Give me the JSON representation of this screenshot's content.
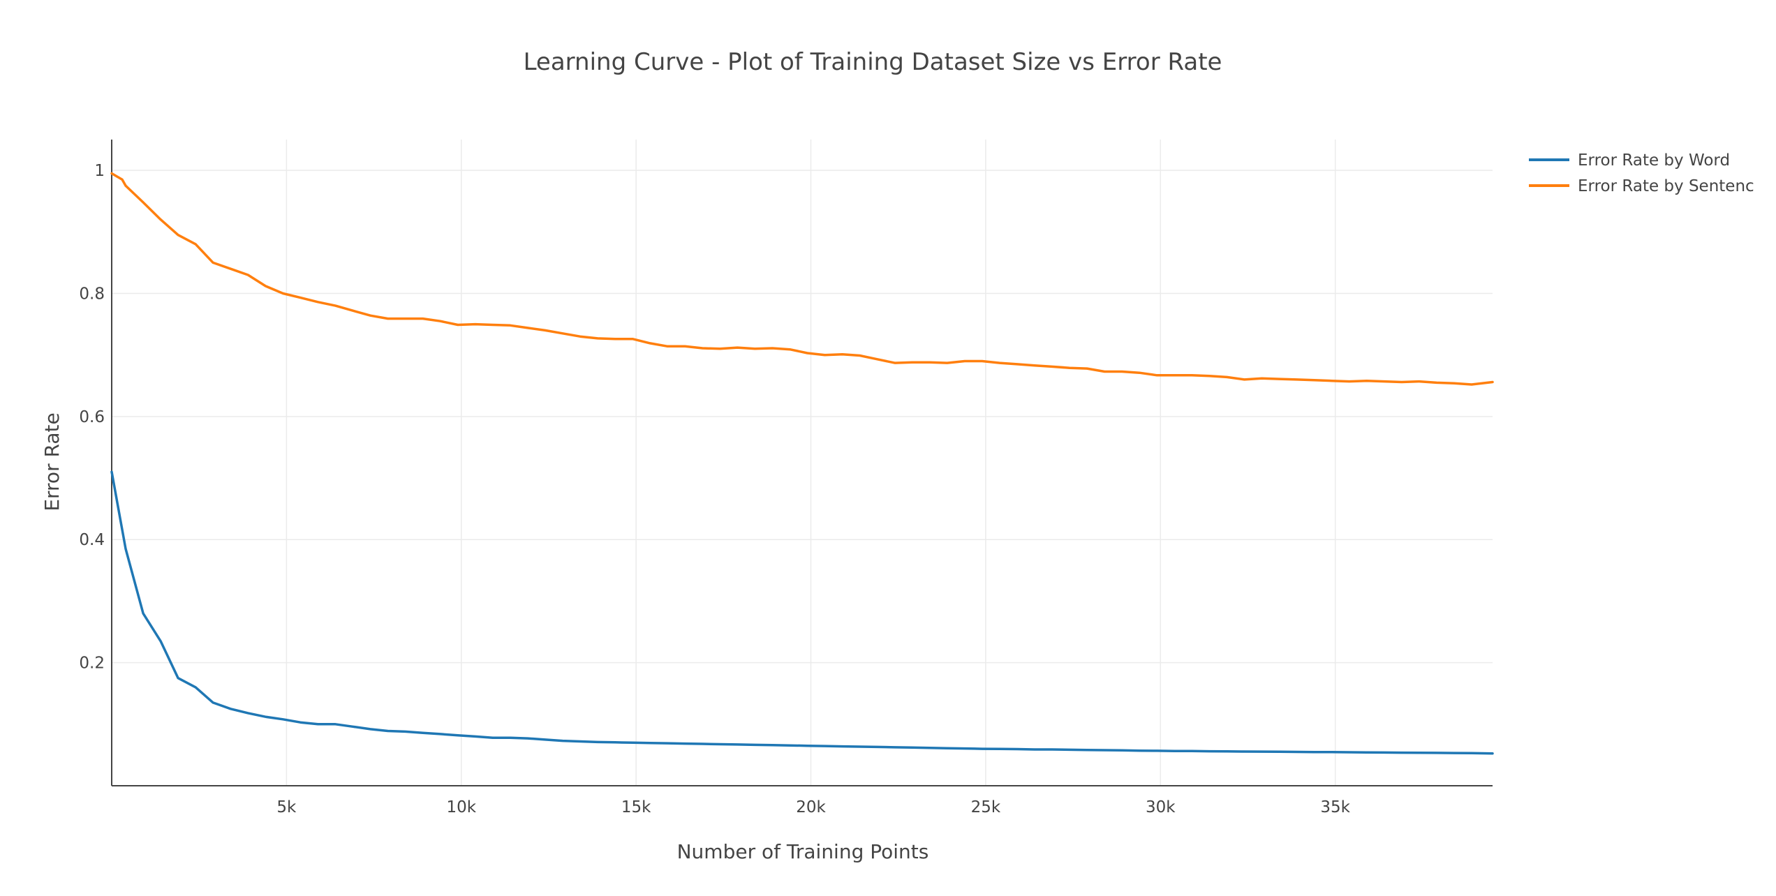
{
  "chart_data": {
    "type": "line",
    "title": "Learning Curve - Plot of Training Dataset Size vs Error Rate",
    "xlabel": "Number of Training Points",
    "ylabel": "Error Rate",
    "xlim": [
      0,
      39500
    ],
    "ylim": [
      0,
      1.05
    ],
    "x_ticks": [
      5000,
      10000,
      15000,
      20000,
      25000,
      30000,
      35000
    ],
    "x_tick_labels": [
      "5k",
      "10k",
      "15k",
      "20k",
      "25k",
      "30k",
      "35k"
    ],
    "y_ticks": [
      0.2,
      0.4,
      0.6,
      0.8,
      1
    ],
    "y_tick_labels": [
      "0.2",
      "0.4",
      "0.6",
      "0.8",
      "1"
    ],
    "grid": true,
    "legend_position": "top-right",
    "series": [
      {
        "name": "Error Rate by Word",
        "color": "#1f77b4",
        "x": [
          0,
          400,
          900,
          1400,
          1900,
          2400,
          2900,
          3400,
          3900,
          4400,
          4900,
          5400,
          5900,
          6400,
          6900,
          7400,
          7900,
          8400,
          8900,
          9400,
          9900,
          10400,
          10900,
          11400,
          11900,
          12400,
          12900,
          13400,
          13900,
          14400,
          14900,
          15400,
          15900,
          16400,
          16900,
          17400,
          17900,
          18400,
          18900,
          19400,
          19900,
          20400,
          20900,
          21400,
          21900,
          22400,
          22900,
          23400,
          23900,
          24400,
          24900,
          25400,
          25900,
          26400,
          26900,
          27400,
          27900,
          28400,
          28900,
          29400,
          29900,
          30400,
          30900,
          31400,
          31900,
          32400,
          32900,
          33400,
          33900,
          34400,
          34900,
          35400,
          35900,
          36400,
          36900,
          37400,
          37900,
          38400,
          38900,
          39500
        ],
        "values": [
          0.51,
          0.385,
          0.28,
          0.235,
          0.175,
          0.16,
          0.135,
          0.125,
          0.118,
          0.112,
          0.108,
          0.103,
          0.1,
          0.1,
          0.096,
          0.092,
          0.089,
          0.088,
          0.086,
          0.084,
          0.082,
          0.08,
          0.078,
          0.078,
          0.077,
          0.075,
          0.073,
          0.072,
          0.071,
          0.0705,
          0.07,
          0.0695,
          0.069,
          0.0685,
          0.068,
          0.0675,
          0.067,
          0.0665,
          0.066,
          0.0655,
          0.065,
          0.0645,
          0.064,
          0.0635,
          0.063,
          0.0625,
          0.062,
          0.0615,
          0.061,
          0.0605,
          0.06,
          0.0598,
          0.0595,
          0.059,
          0.059,
          0.0585,
          0.058,
          0.0578,
          0.0575,
          0.057,
          0.0568,
          0.0565,
          0.0563,
          0.056,
          0.0558,
          0.0556,
          0.0554,
          0.0552,
          0.055,
          0.0548,
          0.0546,
          0.0544,
          0.0542,
          0.054,
          0.0538,
          0.0536,
          0.0534,
          0.0532,
          0.053,
          0.0525
        ]
      },
      {
        "name": "Error Rate by Sentence",
        "color": "#ff7f0e",
        "x": [
          0,
          300,
          400,
          900,
          1400,
          1900,
          2400,
          2900,
          3400,
          3900,
          4400,
          4900,
          5400,
          5900,
          6400,
          6900,
          7400,
          7900,
          8400,
          8900,
          9400,
          9900,
          10400,
          10900,
          11400,
          11900,
          12400,
          12900,
          13400,
          13900,
          14400,
          14900,
          15400,
          15900,
          16400,
          16900,
          17400,
          17900,
          18400,
          18900,
          19400,
          19900,
          20400,
          20900,
          21400,
          21900,
          22400,
          22900,
          23400,
          23900,
          24400,
          24900,
          25400,
          25900,
          26400,
          26900,
          27400,
          27900,
          28400,
          28900,
          29400,
          29900,
          30400,
          30900,
          31400,
          31900,
          32400,
          32900,
          33400,
          33900,
          34400,
          34900,
          35400,
          35900,
          36400,
          36900,
          37400,
          37900,
          38400,
          38900,
          39500
        ],
        "values": [
          0.995,
          0.985,
          0.975,
          0.948,
          0.92,
          0.895,
          0.88,
          0.85,
          0.84,
          0.83,
          0.812,
          0.8,
          0.793,
          0.786,
          0.78,
          0.772,
          0.764,
          0.759,
          0.759,
          0.759,
          0.755,
          0.749,
          0.75,
          0.749,
          0.748,
          0.744,
          0.74,
          0.735,
          0.73,
          0.727,
          0.726,
          0.726,
          0.719,
          0.714,
          0.714,
          0.711,
          0.71,
          0.712,
          0.71,
          0.711,
          0.709,
          0.703,
          0.7,
          0.701,
          0.699,
          0.693,
          0.687,
          0.688,
          0.688,
          0.687,
          0.69,
          0.69,
          0.687,
          0.685,
          0.683,
          0.681,
          0.679,
          0.678,
          0.673,
          0.673,
          0.671,
          0.667,
          0.667,
          0.667,
          0.666,
          0.664,
          0.66,
          0.662,
          0.661,
          0.66,
          0.659,
          0.658,
          0.657,
          0.658,
          0.657,
          0.656,
          0.657,
          0.655,
          0.654,
          0.652,
          0.656
        ]
      }
    ]
  },
  "legend": {
    "item1": "Error Rate by Word",
    "item2": "Error Rate by Sentenc"
  }
}
